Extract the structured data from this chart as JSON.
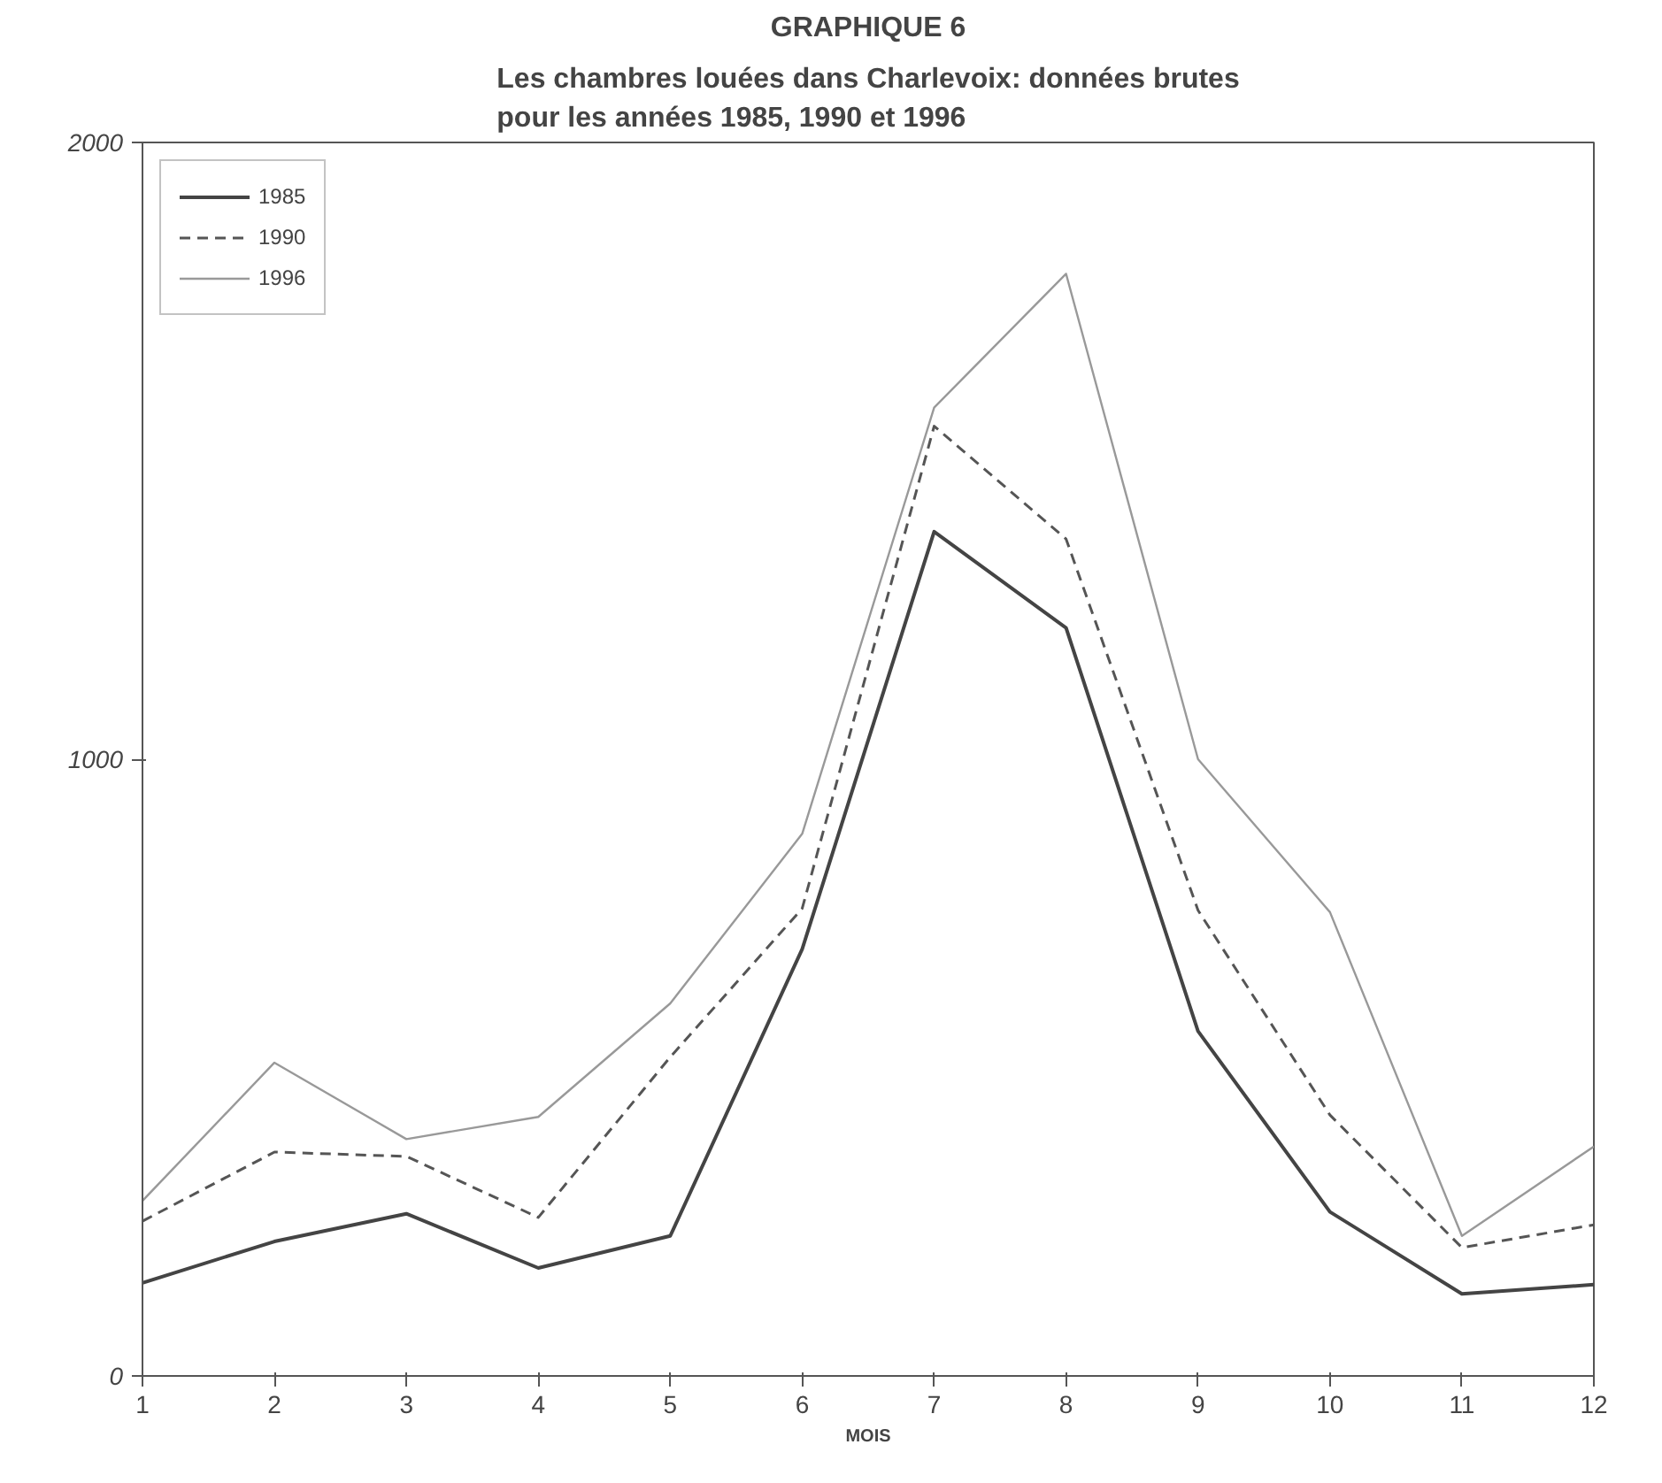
{
  "chart_data": {
    "type": "line",
    "title": "GRAPHIQUE 6",
    "subtitle": "Les chambres louées dans Charlevoix: données brutes\npour les années 1985, 1990 et 1996",
    "xlabel": "MOIS",
    "x": [
      1,
      2,
      3,
      4,
      5,
      6,
      7,
      8,
      9,
      10,
      11,
      12
    ],
    "xlim": [
      1,
      12
    ],
    "xticks": [
      1,
      2,
      3,
      4,
      5,
      6,
      7,
      8,
      9,
      10,
      11,
      12
    ],
    "ylim": [
      0,
      2000
    ],
    "yticks": [
      0,
      1000,
      2000
    ],
    "series": [
      {
        "name": "1985",
        "color": "#444444",
        "line_style": "solid",
        "values": [
          151,
          218,
          263,
          175,
          227,
          692,
          1369,
          1213,
          559,
          266,
          133,
          148
        ]
      },
      {
        "name": "1990",
        "color": "#555555",
        "line_style": "dashed",
        "values": [
          251,
          363,
          356,
          257,
          517,
          758,
          1540,
          1357,
          755,
          423,
          208,
          245
        ]
      },
      {
        "name": "1996",
        "color": "#999999",
        "line_style": "solid",
        "values": [
          284,
          508,
          384,
          420,
          604,
          879,
          1570,
          1787,
          1000,
          752,
          227,
          372
        ]
      }
    ],
    "grid": false,
    "legend": "top left",
    "marker": "none"
  }
}
